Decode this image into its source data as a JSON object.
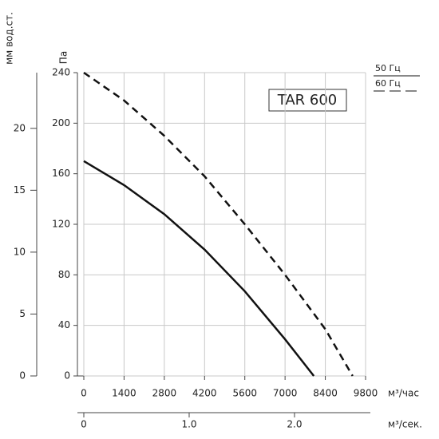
{
  "chart_data": {
    "type": "line",
    "title": "TAR 600",
    "ylabel": "Па",
    "y2label": "мм вод.ст.",
    "xlabel": "м³/час",
    "x2label": "м³/сек.",
    "xlim": [
      0,
      9800
    ],
    "xticks": [
      0,
      1400,
      2800,
      4200,
      5600,
      7000,
      8400,
      9800
    ],
    "ylim": [
      0,
      240
    ],
    "yticks": [
      0,
      40,
      80,
      120,
      160,
      200,
      240
    ],
    "y2lim": [
      0,
      24.5
    ],
    "y2ticks": [
      0,
      5,
      10,
      15,
      20
    ],
    "x2lim": [
      0,
      2.72
    ],
    "x2ticks": [
      0,
      {
        "value": 1,
        "label": "1.0"
      },
      {
        "value": 2,
        "label": "2.0"
      }
    ],
    "grid": true,
    "series": [
      {
        "name": "50 Гц",
        "color": "#111111",
        "linestyle": "solid",
        "x": [
          0,
          1400,
          2800,
          4200,
          5600,
          7000,
          8000
        ],
        "values": [
          170,
          151,
          128,
          100,
          67,
          29,
          0
        ]
      },
      {
        "name": "60 Гц",
        "color": "#111111",
        "linestyle": "dashed",
        "x": [
          0,
          1400,
          2800,
          4200,
          5600,
          7000,
          8400,
          9350
        ],
        "values": [
          240,
          218,
          190,
          158,
          120,
          80,
          37,
          0
        ]
      }
    ]
  }
}
